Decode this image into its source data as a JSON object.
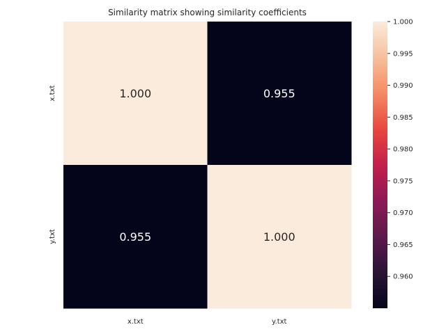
{
  "chart_data": {
    "type": "heatmap",
    "title": "Similarity matrix showing similarity coefficients",
    "x_categories": [
      "x.txt",
      "y.txt"
    ],
    "y_categories": [
      "x.txt",
      "y.txt"
    ],
    "values": [
      [
        1.0,
        0.955
      ],
      [
        0.955,
        1.0
      ]
    ],
    "value_format": "3 decimals",
    "colormap": "rocket",
    "colorbar": {
      "min": 0.955,
      "max": 1.0,
      "ticks": [
        "0.960",
        "0.965",
        "0.970",
        "0.975",
        "0.980",
        "0.985",
        "0.990",
        "0.995",
        "1.000"
      ]
    },
    "colors": {
      "low": "#03051a",
      "high": "#faebdd",
      "text_on_dark": "#ffffff",
      "text_on_light": "#262626"
    }
  }
}
